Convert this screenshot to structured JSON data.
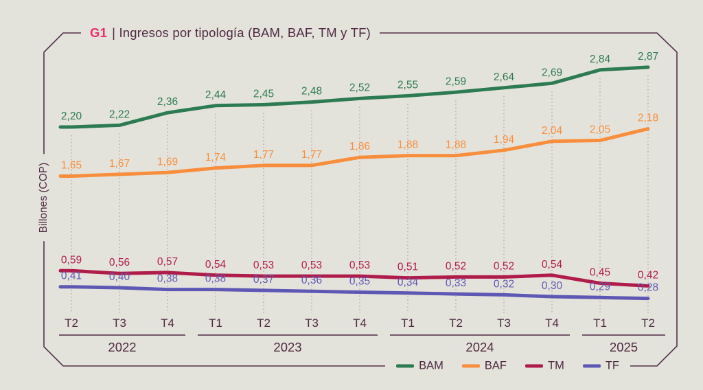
{
  "title": {
    "tag": "G1",
    "rest": "| Ingresos por tipología (BAM, BAF, TM y TF)"
  },
  "ylabel": "Billones (COP)",
  "colors": {
    "background": "#e4e3db",
    "frame": "#543149",
    "text": "#4e2a42",
    "title_tag": "#ee2d6e",
    "gridline": "#c09aa2"
  },
  "legend": [
    {
      "label": "BAM",
      "color": "#2c7b52"
    },
    {
      "label": "BAF",
      "color": "#f78e3d"
    },
    {
      "label": "TM",
      "color": "#b01c4a"
    },
    {
      "label": "TF",
      "color": "#5e58b5"
    }
  ],
  "chart_data": {
    "type": "line",
    "title": "G1 | Ingresos por tipología (BAM, BAF, TM y TF)",
    "ylabel": "Billones (COP)",
    "decimal_separator": ",",
    "grid": "vertical-dotted",
    "legend_position": "bottom-right",
    "x_groups": [
      {
        "year": "2022",
        "quarters": [
          "T2",
          "T3",
          "T4"
        ]
      },
      {
        "year": "2023",
        "quarters": [
          "T1",
          "T2",
          "T3",
          "T4"
        ]
      },
      {
        "year": "2024",
        "quarters": [
          "T1",
          "T2",
          "T3",
          "T4"
        ]
      },
      {
        "year": "2025",
        "quarters": [
          "T1",
          "T2"
        ]
      }
    ],
    "categories": [
      "2022-T2",
      "2022-T3",
      "2022-T4",
      "2023-T1",
      "2023-T2",
      "2023-T3",
      "2023-T4",
      "2024-T1",
      "2024-T2",
      "2024-T3",
      "2024-T4",
      "2025-T1",
      "2025-T2"
    ],
    "series": [
      {
        "name": "BAM",
        "color": "#2c7b52",
        "values": [
          2.2,
          2.22,
          2.36,
          2.44,
          2.45,
          2.48,
          2.52,
          2.55,
          2.59,
          2.64,
          2.69,
          2.84,
          2.87
        ]
      },
      {
        "name": "BAF",
        "color": "#f78e3d",
        "values": [
          1.65,
          1.67,
          1.69,
          1.74,
          1.77,
          1.77,
          1.86,
          1.88,
          1.88,
          1.94,
          2.04,
          2.05,
          2.18
        ]
      },
      {
        "name": "TM",
        "color": "#b01c4a",
        "values": [
          0.59,
          0.56,
          0.57,
          0.54,
          0.53,
          0.53,
          0.53,
          0.51,
          0.52,
          0.52,
          0.54,
          0.45,
          0.42
        ]
      },
      {
        "name": "TF",
        "color": "#5e58b5",
        "values": [
          0.41,
          0.4,
          0.38,
          0.38,
          0.37,
          0.36,
          0.35,
          0.34,
          0.33,
          0.32,
          0.3,
          0.29,
          0.28
        ]
      }
    ],
    "ylim_implied": [
      0.2,
      2.95
    ]
  }
}
